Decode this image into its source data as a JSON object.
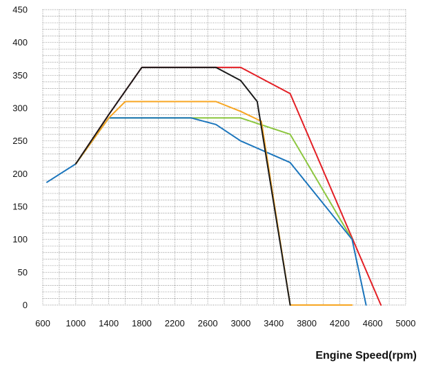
{
  "chart_data": {
    "type": "line",
    "title": "",
    "xlabel": "Engine Speed(rpm)",
    "ylabel": "",
    "xlim": [
      600,
      5000
    ],
    "ylim": [
      0,
      450
    ],
    "x_ticks": [
      600,
      1000,
      1400,
      1800,
      2200,
      2600,
      3000,
      3400,
      3800,
      4200,
      4600,
      5000
    ],
    "y_ticks": [
      0,
      50,
      100,
      150,
      200,
      250,
      300,
      350,
      400,
      450
    ],
    "x_minor_step": 200,
    "y_minor_step": 10,
    "grid": "dotted",
    "legend": "none",
    "series": [
      {
        "color": "#e31e24",
        "points": [
          [
            1000,
            215
          ],
          [
            1400,
            290
          ],
          [
            1800,
            362
          ],
          [
            2700,
            362
          ],
          [
            3000,
            362
          ],
          [
            3600,
            322
          ],
          [
            4700,
            0
          ]
        ]
      },
      {
        "color": "#8cc63f",
        "points": [
          [
            1000,
            215
          ],
          [
            1400,
            285
          ],
          [
            2400,
            285
          ],
          [
            3000,
            285
          ],
          [
            3600,
            260
          ],
          [
            4350,
            100
          ]
        ]
      },
      {
        "color": "#1b75bc",
        "points": [
          [
            650,
            187
          ],
          [
            1000,
            215
          ],
          [
            1400,
            285
          ],
          [
            2400,
            285
          ],
          [
            2700,
            275
          ],
          [
            3000,
            250
          ],
          [
            3600,
            217
          ],
          [
            4350,
            100
          ],
          [
            4520,
            0
          ]
        ]
      },
      {
        "color": "#f7a520",
        "points": [
          [
            1000,
            215
          ],
          [
            1400,
            285
          ],
          [
            1600,
            310
          ],
          [
            2700,
            310
          ],
          [
            3000,
            295
          ],
          [
            3250,
            280
          ],
          [
            3600,
            0
          ],
          [
            4350,
            0
          ]
        ]
      },
      {
        "color": "#1a1a1a",
        "points": [
          [
            1000,
            215
          ],
          [
            1400,
            290
          ],
          [
            1800,
            362
          ],
          [
            2700,
            362
          ],
          [
            3000,
            342
          ],
          [
            3200,
            310
          ],
          [
            3600,
            0
          ]
        ]
      }
    ]
  }
}
